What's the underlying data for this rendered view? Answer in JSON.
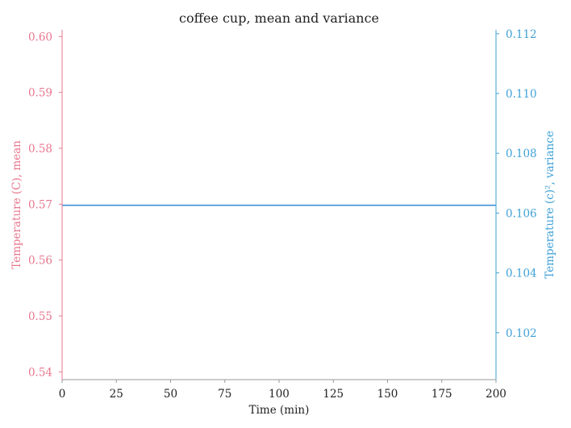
{
  "chart_data": {
    "type": "line",
    "title": "coffee cup, mean and variance",
    "xlabel": "Time (min)",
    "ylabel_left": "Temperature (C), mean",
    "ylabel_right": "Temperature (c)², variance",
    "xlim": [
      0,
      200
    ],
    "ylim_left": [
      0.5386,
      0.6012
    ],
    "ylim_right": [
      0.10043,
      0.11213
    ],
    "x_ticks": [
      "0",
      "25",
      "50",
      "75",
      "100",
      "125",
      "150",
      "175",
      "200"
    ],
    "y_left_ticks": [
      "0.54",
      "0.55",
      "0.56",
      "0.57",
      "0.58",
      "0.59",
      "0.60"
    ],
    "y_right_ticks": [
      "0.102",
      "0.104",
      "0.106",
      "0.108",
      "0.110",
      "0.112"
    ],
    "grid": false,
    "colors": {
      "left_axis": "#e8778e",
      "right_axis": "#3fa1d6",
      "series": "#3f8fd6",
      "x_axis": "#999999"
    },
    "series": [
      {
        "axis": "left",
        "x": [
          0,
          200
        ],
        "values": [
          0.5698,
          0.5698
        ]
      }
    ]
  }
}
